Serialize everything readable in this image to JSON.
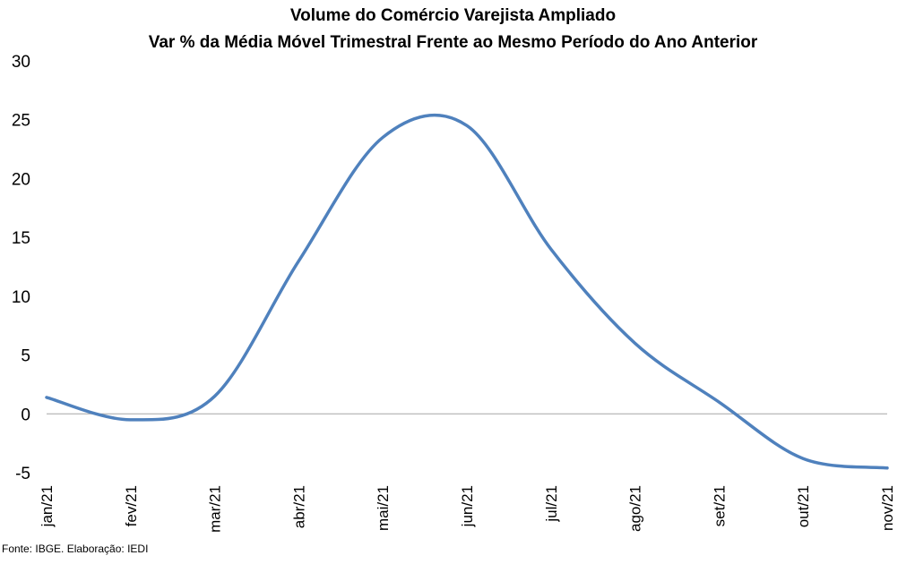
{
  "chart_data": {
    "type": "line",
    "title": "Volume do Comércio Varejista Ampliado",
    "subtitle": "Var % da Média Móvel Trimestral Frente ao Mesmo Período do Ano Anterior",
    "xlabel": "",
    "ylabel": "",
    "categories": [
      "jan/21",
      "fev/21",
      "mar/21",
      "abr/21",
      "mai/21",
      "jun/21",
      "jul/21",
      "ago/21",
      "set/21",
      "out/21",
      "nov/21"
    ],
    "series": [
      {
        "name": "Var %",
        "values": [
          1.4,
          -0.5,
          1.5,
          13.0,
          23.5,
          24.5,
          14.0,
          6.0,
          1.0,
          -3.8,
          -4.6
        ]
      }
    ],
    "ylim": [
      -5,
      30
    ],
    "yticks": [
      30,
      25,
      20,
      15,
      10,
      5,
      0,
      -5
    ],
    "colors": {
      "line": "#4F81BD",
      "zero_line": "#A6A6A6"
    }
  },
  "source": "Fonte: IBGE. Elaboração: IEDI"
}
